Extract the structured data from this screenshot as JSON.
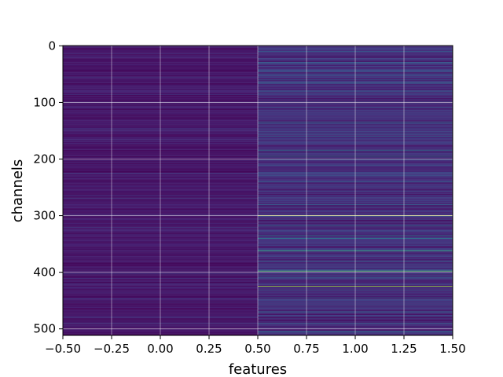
{
  "chart_data": {
    "type": "heatmap",
    "title": "",
    "xlabel": "features",
    "ylabel": "channels",
    "xlim": [
      -0.5,
      1.5
    ],
    "ylim": [
      511.5,
      -0.5
    ],
    "n_rows": 512,
    "n_cols": 2,
    "y_inverted": true,
    "grid": true,
    "colormap": "viridis",
    "xticks": [
      -0.5,
      -0.25,
      0.0,
      0.25,
      0.5,
      0.75,
      1.0,
      1.25,
      1.5
    ],
    "xtick_labels": [
      "−0.50",
      "−0.25",
      "0.00",
      "0.25",
      "0.50",
      "0.75",
      "1.00",
      "1.25",
      "1.50"
    ],
    "yticks": [
      0,
      100,
      200,
      300,
      400,
      500
    ],
    "ytick_labels": [
      "0",
      "100",
      "200",
      "300",
      "400",
      "500"
    ],
    "columns": [
      {
        "feature": 0,
        "description": "uniformly low values",
        "value_range": [
          0.0,
          0.25
        ]
      },
      {
        "feature": 1,
        "description": "higher values with bright stripes",
        "value_range": [
          0.0,
          1.0
        ]
      }
    ],
    "bright_rows_feature_1": [
      {
        "channel": 10,
        "value": 0.35
      },
      {
        "channel": 30,
        "value": 0.35
      },
      {
        "channel": 45,
        "value": 0.4
      },
      {
        "channel": 65,
        "value": 0.45
      },
      {
        "channel": 80,
        "value": 0.4
      },
      {
        "channel": 135,
        "value": 0.45
      },
      {
        "channel": 160,
        "value": 0.4
      },
      {
        "channel": 185,
        "value": 0.45
      },
      {
        "channel": 195,
        "value": 0.55
      },
      {
        "channel": 200,
        "value": 0.45
      },
      {
        "channel": 240,
        "value": 0.4
      },
      {
        "channel": 280,
        "value": 0.4
      },
      {
        "channel": 300,
        "value": 0.95
      },
      {
        "channel": 318,
        "value": 0.45
      },
      {
        "channel": 335,
        "value": 0.5
      },
      {
        "channel": 340,
        "value": 0.55
      },
      {
        "channel": 362,
        "value": 0.75
      },
      {
        "channel": 380,
        "value": 0.4
      },
      {
        "channel": 398,
        "value": 0.8
      },
      {
        "channel": 410,
        "value": 0.4
      },
      {
        "channel": 425,
        "value": 0.9
      },
      {
        "channel": 445,
        "value": 0.4
      },
      {
        "channel": 470,
        "value": 0.45
      },
      {
        "channel": 490,
        "value": 0.4
      },
      {
        "channel": 505,
        "value": 0.5
      }
    ]
  }
}
